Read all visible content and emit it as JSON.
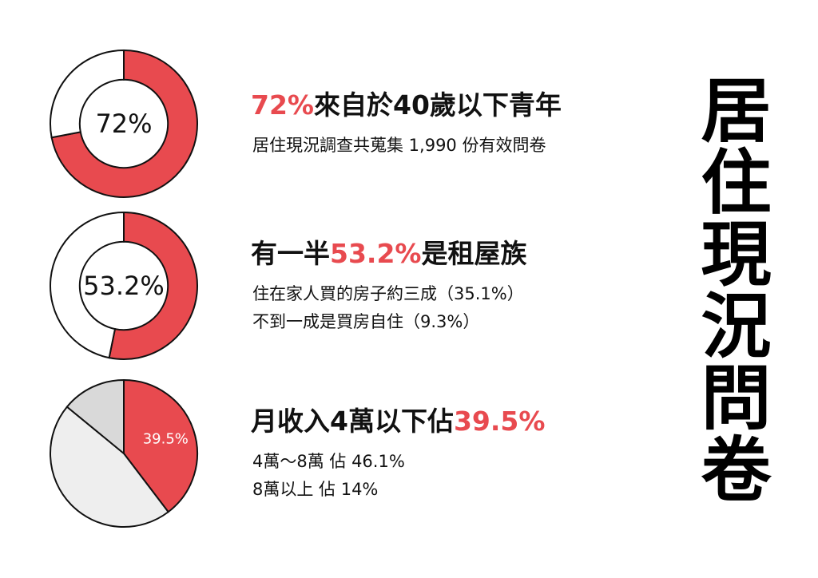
{
  "title": "居住現況問卷",
  "chart_data": [
    {
      "type": "donut",
      "values": [
        72,
        28
      ],
      "value_labels": [
        "72%",
        null
      ],
      "colors": [
        "#e84a4f",
        "#ffffff"
      ],
      "headline": [
        {
          "text": "72%",
          "color": "#e84a4f"
        },
        {
          "text": "來自於40歲以下青年",
          "color": "#111111"
        }
      ],
      "notes": [
        "居住現況調查共蒐集 1,990 份有效問卷"
      ]
    },
    {
      "type": "donut",
      "values": [
        53.2,
        46.8
      ],
      "value_labels": [
        "53.2%",
        null
      ],
      "colors": [
        "#e84a4f",
        "#ffffff"
      ],
      "headline": [
        {
          "text": "有一半",
          "color": "#111111"
        },
        {
          "text": "53.2%",
          "color": "#e84a4f"
        },
        {
          "text": "是租屋族",
          "color": "#111111"
        }
      ],
      "notes": [
        "住在家人買的房子約三成（35.1%）",
        "不到一成是買房自住（9.3%）"
      ]
    },
    {
      "type": "pie",
      "values": [
        39.5,
        46.1,
        14
      ],
      "value_labels": [
        "39.5%",
        null,
        null
      ],
      "colors": [
        "#e84a4f",
        "#eeeeee",
        "#d9d9d9"
      ],
      "headline": [
        {
          "text": "月收入4萬以下佔",
          "color": "#111111"
        },
        {
          "text": "39.5%",
          "color": "#e84a4f"
        }
      ],
      "notes": [
        "4萬～8萬 佔 46.1%",
        "8萬以上 佔 14%"
      ]
    }
  ]
}
